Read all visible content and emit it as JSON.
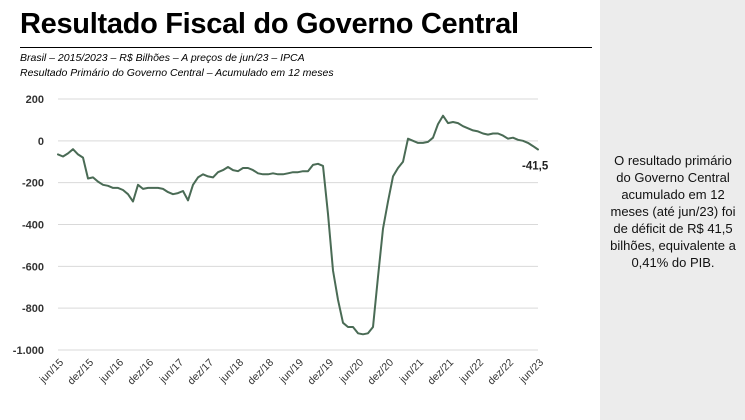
{
  "title": "Resultado Fiscal do Governo Central",
  "subtitle_1": "Brasil – 2015/2023 – R$ Bilhões – A preços de jun/23 – IPCA",
  "subtitle_2": "Resultado Primário do Governo Central – Acumulado em 12 meses",
  "note": "O resultado primário do Governo Central acumulado em 12 meses (até jun/23) foi de déficit de R$ 41,5 bilhões, equivalente a 0,41% do PIB.",
  "colors": {
    "line": "#4a6b55",
    "grid": "#d9d9d9",
    "panel": "#ececec"
  },
  "chart_data": {
    "type": "line",
    "title": "Resultado Fiscal do Governo Central",
    "xlabel": "",
    "ylabel": "",
    "ylim": [
      -1000,
      200
    ],
    "yticks": [
      200,
      0,
      -200,
      -400,
      -600,
      -800,
      -1000
    ],
    "ytick_labels": [
      "200",
      "0",
      "-200",
      "-400",
      "-600",
      "-800",
      "-1.000"
    ],
    "xtick_labels": [
      "jun/15",
      "dez/15",
      "jun/16",
      "dez/16",
      "jun/17",
      "dez/17",
      "jun/18",
      "dez/18",
      "jun/19",
      "dez/19",
      "jun/20",
      "dez/20",
      "jun/21",
      "dez/21",
      "jun/22",
      "dez/22",
      "jun/23"
    ],
    "grid": true,
    "legend": "none",
    "annotation": {
      "label": "-41,5",
      "x": 96,
      "y": -41.5
    },
    "series": [
      {
        "values": [
          -65,
          -75,
          -60,
          -40,
          -65,
          -80,
          -180,
          -175,
          -195,
          -210,
          -215,
          -225,
          -225,
          -235,
          -255,
          -290,
          -210,
          -230,
          -225,
          -225,
          -225,
          -230,
          -245,
          -255,
          -250,
          -240,
          -285,
          -210,
          -175,
          -160,
          -170,
          -175,
          -150,
          -140,
          -125,
          -140,
          -145,
          -130,
          -130,
          -140,
          -155,
          -160,
          -160,
          -155,
          -160,
          -160,
          -155,
          -150,
          -150,
          -145,
          -145,
          -115,
          -110,
          -120,
          -350,
          -620,
          -760,
          -870,
          -890,
          -890,
          -920,
          -925,
          -920,
          -890,
          -650,
          -420,
          -290,
          -170,
          -130,
          -100,
          10,
          0,
          -10,
          -10,
          -5,
          15,
          80,
          120,
          85,
          90,
          85,
          70,
          60,
          50,
          45,
          35,
          30,
          35,
          35,
          25,
          10,
          15,
          5,
          0,
          -10,
          -25,
          -41.5
        ]
      }
    ]
  }
}
